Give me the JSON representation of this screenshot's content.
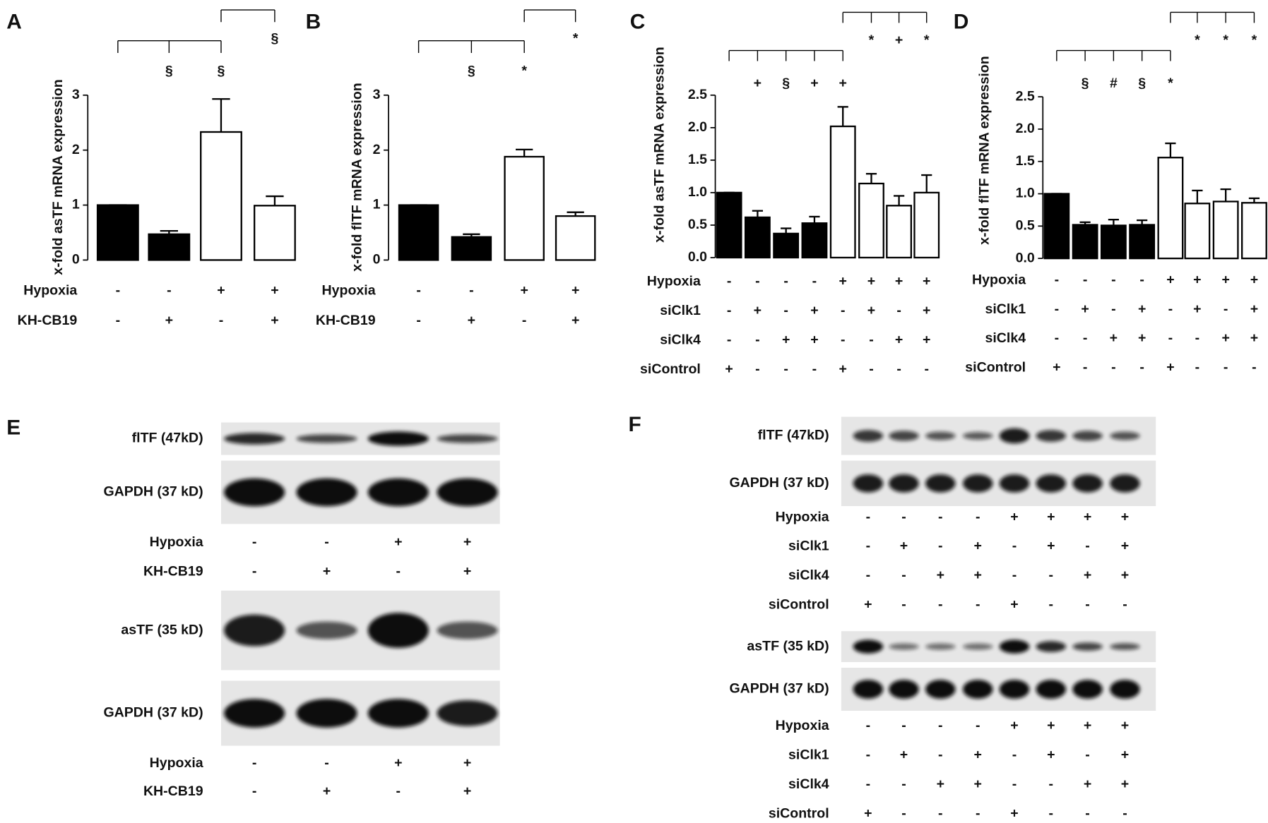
{
  "chart_data": [
    {
      "type": "bar",
      "panel": "A",
      "ylabel": "x-fold asTF mRNA expression",
      "values": [
        1,
        0.47,
        2.33,
        0.99
      ],
      "errors": [
        0,
        0.06,
        0.6,
        0.17
      ],
      "colors": [
        "#000000",
        "#000000",
        "#ffffff",
        "#ffffff"
      ],
      "ylim": [
        0,
        3
      ],
      "yticks": [
        0,
        1,
        2,
        3
      ],
      "conditions": [
        {
          "name": "Hypoxia",
          "values": [
            "-",
            "-",
            "+",
            "+"
          ]
        },
        {
          "name": "KH-CB19",
          "values": [
            "-",
            "+",
            "-",
            "+"
          ]
        }
      ],
      "significance": [
        [
          "§",
          "§"
        ],
        [
          "§"
        ]
      ]
    },
    {
      "type": "bar",
      "panel": "B",
      "ylabel": "x-fold flTF mRNA expression",
      "values": [
        1,
        0.42,
        1.88,
        0.8
      ],
      "errors": [
        0,
        0.05,
        0.13,
        0.07
      ],
      "colors": [
        "#000000",
        "#000000",
        "#ffffff",
        "#ffffff"
      ],
      "ylim": [
        0,
        3
      ],
      "yticks": [
        0,
        1,
        2,
        3
      ],
      "conditions": [
        {
          "name": "Hypoxia",
          "values": [
            "-",
            "-",
            "+",
            "+"
          ]
        },
        {
          "name": "KH-CB19",
          "values": [
            "-",
            "+",
            "-",
            "+"
          ]
        }
      ],
      "significance": [
        [
          "§",
          "*"
        ],
        [
          "*"
        ]
      ]
    },
    {
      "type": "bar",
      "panel": "C",
      "ylabel": "x-fold asTF mRNA expression",
      "values": [
        1.0,
        0.62,
        0.37,
        0.53,
        2.02,
        1.14,
        0.8,
        1.0
      ],
      "errors": [
        0,
        0.1,
        0.08,
        0.1,
        0.3,
        0.15,
        0.15,
        0.27
      ],
      "colors": [
        "#000000",
        "#000000",
        "#000000",
        "#000000",
        "#ffffff",
        "#ffffff",
        "#ffffff",
        "#ffffff"
      ],
      "ylim": [
        0,
        2.5
      ],
      "yticks": [
        {
          "value": 0,
          "label": "0.0"
        },
        0.5,
        {
          "value": 1,
          "label": "1.0"
        },
        1.5,
        {
          "value": 2,
          "label": "2.0"
        },
        2.5
      ],
      "conditions": [
        {
          "name": "Hypoxia",
          "values": [
            "-",
            "-",
            "-",
            "-",
            "+",
            "+",
            "+",
            "+"
          ]
        },
        {
          "name": "siClk1",
          "values": [
            "-",
            "+",
            "-",
            "+",
            "-",
            "+",
            "-",
            "+"
          ]
        },
        {
          "name": "siClk4",
          "values": [
            "-",
            "-",
            "+",
            "+",
            "-",
            "-",
            "+",
            "+"
          ]
        },
        {
          "name": "siControl",
          "values": [
            "+",
            "-",
            "-",
            "-",
            "+",
            "-",
            "-",
            "-"
          ]
        }
      ],
      "significance": [
        [
          "+",
          "§",
          "+",
          "+"
        ],
        [
          "*",
          "+",
          "*"
        ]
      ]
    },
    {
      "type": "bar",
      "panel": "D",
      "ylabel": "x-fold flTF mRNA expression",
      "values": [
        1.0,
        0.52,
        0.51,
        0.52,
        1.56,
        0.85,
        0.88,
        0.86
      ],
      "errors": [
        0,
        0.04,
        0.09,
        0.07,
        0.22,
        0.2,
        0.19,
        0.07
      ],
      "colors": [
        "#000000",
        "#000000",
        "#000000",
        "#000000",
        "#ffffff",
        "#ffffff",
        "#ffffff",
        "#ffffff"
      ],
      "ylim": [
        0,
        2.5
      ],
      "yticks": [
        {
          "value": 0,
          "label": "0.0"
        },
        0.5,
        {
          "value": 1,
          "label": "1.0"
        },
        1.5,
        {
          "value": 2,
          "label": "2.0"
        },
        2.5
      ],
      "conditions": [
        {
          "name": "Hypoxia",
          "values": [
            "-",
            "-",
            "-",
            "-",
            "+",
            "+",
            "+",
            "+"
          ]
        },
        {
          "name": "siClk1",
          "values": [
            "-",
            "+",
            "-",
            "+",
            "-",
            "+",
            "-",
            "+"
          ]
        },
        {
          "name": "siClk4",
          "values": [
            "-",
            "-",
            "+",
            "+",
            "-",
            "-",
            "+",
            "+"
          ]
        },
        {
          "name": "siControl",
          "values": [
            "+",
            "-",
            "-",
            "-",
            "+",
            "-",
            "-",
            "-"
          ]
        }
      ],
      "significance": [
        [
          "§",
          "#",
          "§",
          "*"
        ],
        [
          "*",
          "*",
          "*"
        ]
      ]
    }
  ],
  "blots": [
    {
      "panel": "E",
      "sections": [
        {
          "lanes": [
            "flTF (47kD)",
            "GAPDH (37 kD)"
          ],
          "conditions": [
            {
              "name": "Hypoxia",
              "values": [
                "-",
                "-",
                "+",
                "+"
              ]
            },
            {
              "name": "KH-CB19",
              "values": [
                "-",
                "+",
                "-",
                "+"
              ]
            }
          ]
        },
        {
          "lanes": [
            "asTF (35 kD)",
            "GAPDH (37 kD)"
          ],
          "conditions": [
            {
              "name": "Hypoxia",
              "values": [
                "-",
                "-",
                "+",
                "+"
              ]
            },
            {
              "name": "KH-CB19",
              "values": [
                "-",
                "+",
                "-",
                "+"
              ]
            }
          ]
        }
      ]
    },
    {
      "panel": "F",
      "sections": [
        {
          "lanes": [
            "flTF (47kD)",
            "GAPDH (37 kD)"
          ],
          "conditions": [
            {
              "name": "Hypoxia",
              "values": [
                "-",
                "-",
                "-",
                "-",
                "+",
                "+",
                "+",
                "+"
              ]
            },
            {
              "name": "siClk1",
              "values": [
                "-",
                "+",
                "-",
                "+",
                "-",
                "+",
                "-",
                "+"
              ]
            },
            {
              "name": "siClk4",
              "values": [
                "-",
                "-",
                "+",
                "+",
                "-",
                "-",
                "+",
                "+"
              ]
            },
            {
              "name": "siControl",
              "values": [
                "+",
                "-",
                "-",
                "-",
                "+",
                "-",
                "-",
                "-"
              ]
            }
          ]
        },
        {
          "lanes": [
            "asTF (35 kD)",
            "GAPDH (37 kD)"
          ],
          "conditions": [
            {
              "name": "Hypoxia",
              "values": [
                "-",
                "-",
                "-",
                "-",
                "+",
                "+",
                "+",
                "+"
              ]
            },
            {
              "name": "siClk1",
              "values": [
                "-",
                "+",
                "-",
                "+",
                "-",
                "+",
                "-",
                "+"
              ]
            },
            {
              "name": "siClk4",
              "values": [
                "-",
                "-",
                "+",
                "+",
                "-",
                "-",
                "+",
                "+"
              ]
            },
            {
              "name": "siControl",
              "values": [
                "+",
                "-",
                "-",
                "-",
                "+",
                "-",
                "-",
                "-"
              ]
            }
          ]
        }
      ]
    }
  ]
}
